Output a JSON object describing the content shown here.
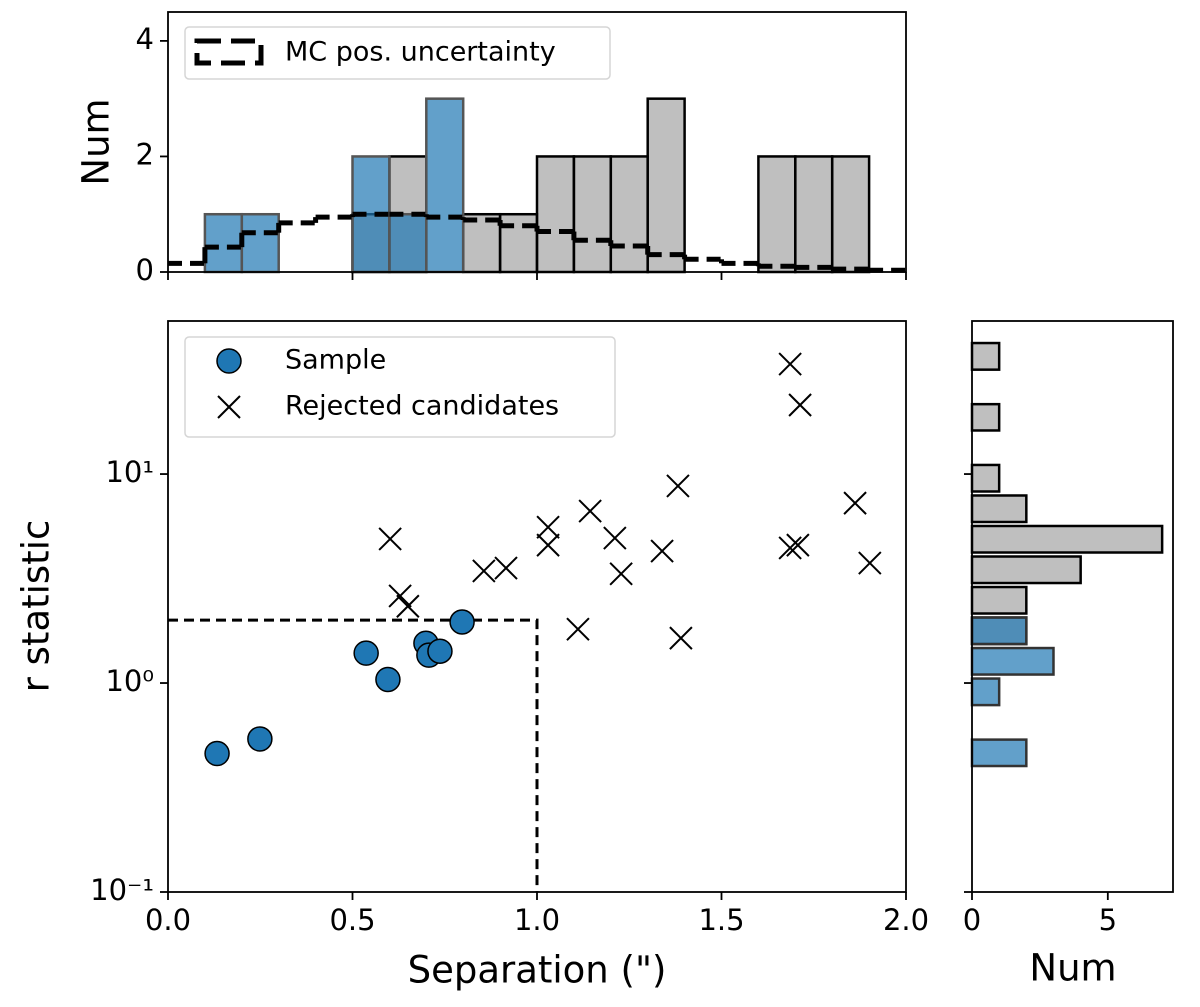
{
  "chart_data": [
    {
      "type": "histogram",
      "orientation": "vertical",
      "ylabel": "Num",
      "xlim": [
        0,
        2
      ],
      "ylim": [
        0,
        4.5
      ],
      "xticks": [
        0,
        0.5,
        1,
        1.5,
        2
      ],
      "show_xticklabels": false,
      "yticks": [
        0,
        2,
        4
      ],
      "legend": "upper left",
      "series": [
        {
          "color": "#808080",
          "alpha": 0.5,
          "edgecolor": "#000000",
          "bins": [
            0,
            0.1,
            0.2,
            0.3,
            0.4,
            0.5,
            0.6,
            0.7,
            0.8,
            0.9,
            1.0,
            1.1,
            1.2,
            1.3,
            1.4,
            1.5,
            1.6,
            1.7,
            1.8,
            1.9
          ],
          "counts": [
            0,
            0,
            0,
            0,
            0,
            1,
            2,
            0,
            1,
            1,
            2,
            2,
            2,
            3,
            0,
            0,
            2,
            2,
            2
          ]
        },
        {
          "color": "#1f77b4",
          "alpha": 0.7,
          "edgecolor": "#555555",
          "bins": [
            0,
            0.1,
            0.2,
            0.3,
            0.4,
            0.5,
            0.6,
            0.7,
            0.8,
            0.9,
            1.0,
            1.1,
            1.2,
            1.3,
            1.4,
            1.5,
            1.6,
            1.7,
            1.8,
            1.9
          ],
          "counts": [
            0,
            1,
            1,
            0,
            0,
            2,
            1,
            3,
            0,
            0,
            0,
            0,
            0,
            0,
            0,
            0,
            0,
            0,
            0
          ]
        },
        {
          "name": "MC pos. uncertainty",
          "style": "step-dashed",
          "color": "#000000",
          "bins": [
            0,
            0.1,
            0.2,
            0.3,
            0.4,
            0.5,
            0.6,
            0.7,
            0.8,
            0.9,
            1.0,
            1.1,
            1.2,
            1.3,
            1.4,
            1.5,
            1.6,
            1.7,
            1.8,
            1.9,
            2.0
          ],
          "counts": [
            0.15,
            0.43,
            0.68,
            0.85,
            0.95,
            1.0,
            1.0,
            0.95,
            0.9,
            0.8,
            0.7,
            0.55,
            0.45,
            0.3,
            0.22,
            0.15,
            0.1,
            0.08,
            0.05,
            0.03
          ]
        }
      ]
    },
    {
      "type": "scatter",
      "xlabel": "Separation (\")",
      "ylabel": "r statistic",
      "xlim": [
        0,
        2
      ],
      "ylim": [
        0.1,
        54
      ],
      "yscale": "log",
      "xticks": [
        {
          "value": 0,
          "label": "0.0"
        },
        0.5,
        {
          "value": 1,
          "label": "1.0"
        },
        1.5,
        {
          "value": 2,
          "label": "2.0"
        }
      ],
      "yticks": [
        {
          "value": 0.1,
          "label": "10⁻¹"
        },
        {
          "value": 1,
          "label": "10⁰"
        },
        {
          "value": 10,
          "label": "10¹"
        }
      ],
      "legend": "upper left",
      "threshold": {
        "x": 1,
        "y": 2
      },
      "series": [
        {
          "name": "Sample",
          "marker": "o",
          "color": "#1f77b4",
          "x": [
            0.133,
            0.249,
            0.537,
            0.596,
            0.699,
            0.707,
            0.737,
            0.797
          ],
          "values": [
            0.46,
            0.54,
            1.39,
            1.04,
            1.55,
            1.36,
            1.42,
            1.96
          ]
        },
        {
          "name": "Rejected candidates",
          "marker": "x",
          "color": "#000000",
          "x": [
            1.686,
            1.713,
            1.382,
            1.144,
            1.03,
            1.03,
            1.862,
            0.602,
            1.211,
            1.339,
            1.686,
            1.707,
            0.856,
            0.916,
            1.228,
            1.902,
            0.629,
            0.65,
            1.111,
            1.39
          ],
          "values": [
            33.6,
            21.4,
            8.77,
            6.65,
            5.57,
            4.57,
            7.26,
            4.89,
            4.94,
            4.28,
            4.43,
            4.57,
            3.44,
            3.55,
            3.33,
            3.75,
            2.61,
            2.33,
            1.81,
            1.64
          ]
        }
      ]
    },
    {
      "type": "histogram",
      "orientation": "horizontal",
      "xlabel": "Num",
      "xlim": [
        0,
        7.4
      ],
      "xticks": [
        0,
        5
      ],
      "ylim": [
        0.1,
        54
      ],
      "yscale": "log",
      "yticks": [
        0.1,
        1,
        10
      ],
      "show_yticklabels": false,
      "series": [
        {
          "color": "#808080",
          "alpha": 0.5,
          "edgecolor": "#000000",
          "bins": [
            0.392,
            0.548,
            0.767,
            1.074,
            1.503,
            2.104,
            2.944,
            4.121,
            5.768,
            8.072,
            11.3,
            15.81,
            22.08,
            30.9,
            43.3
          ],
          "counts": [
            0,
            0,
            0,
            0,
            2,
            2,
            4,
            7,
            2,
            1,
            0,
            1,
            0,
            1
          ]
        },
        {
          "color": "#1f77b4",
          "alpha": 0.7,
          "edgecolor": "#333333",
          "bins": [
            0.392,
            0.548,
            0.767,
            1.074,
            1.503,
            2.104,
            2.944,
            4.121,
            5.768,
            8.072,
            11.3,
            15.81,
            22.08,
            30.9,
            43.3
          ],
          "counts": [
            2,
            0,
            1,
            3,
            2,
            0,
            0,
            0,
            0,
            0,
            0,
            0,
            0,
            0
          ]
        }
      ]
    }
  ]
}
